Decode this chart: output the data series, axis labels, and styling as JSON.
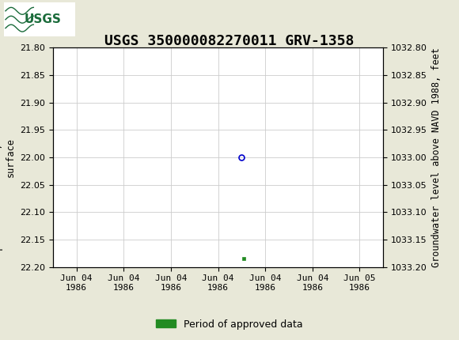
{
  "title": "USGS 350000082270011 GRV-1358",
  "header_color": "#1a6b3a",
  "bg_color": "#e8e8d8",
  "plot_bg_color": "#ffffff",
  "left_ylabel": "Depth to water level, feet below land\nsurface",
  "right_ylabel": "Groundwater level above NAVD 1988, feet",
  "ylim_left": [
    21.8,
    22.2
  ],
  "ylim_right": [
    1032.8,
    1033.2
  ],
  "yticks_left": [
    21.8,
    21.85,
    21.9,
    21.95,
    22.0,
    22.05,
    22.1,
    22.15,
    22.2
  ],
  "yticks_right": [
    1032.8,
    1032.85,
    1032.9,
    1032.95,
    1033.0,
    1033.05,
    1033.1,
    1033.15,
    1033.2
  ],
  "circle_point_x": 3.5,
  "circle_point_y": 22.0,
  "green_point_x": 3.55,
  "green_point_y": 22.185,
  "x_tick_labels": [
    "Jun 04\n1986",
    "Jun 04\n1986",
    "Jun 04\n1986",
    "Jun 04\n1986",
    "Jun 04\n1986",
    "Jun 04\n1986",
    "Jun 05\n1986"
  ],
  "x_tick_positions": [
    0,
    1,
    2,
    3,
    4,
    5,
    6
  ],
  "grid_color": "#cccccc",
  "title_fontsize": 13,
  "axis_label_fontsize": 8.5,
  "tick_fontsize": 8,
  "circle_color": "#0000cc",
  "green_color": "#228B22",
  "legend_label": "Period of approved data",
  "legend_fontsize": 9
}
